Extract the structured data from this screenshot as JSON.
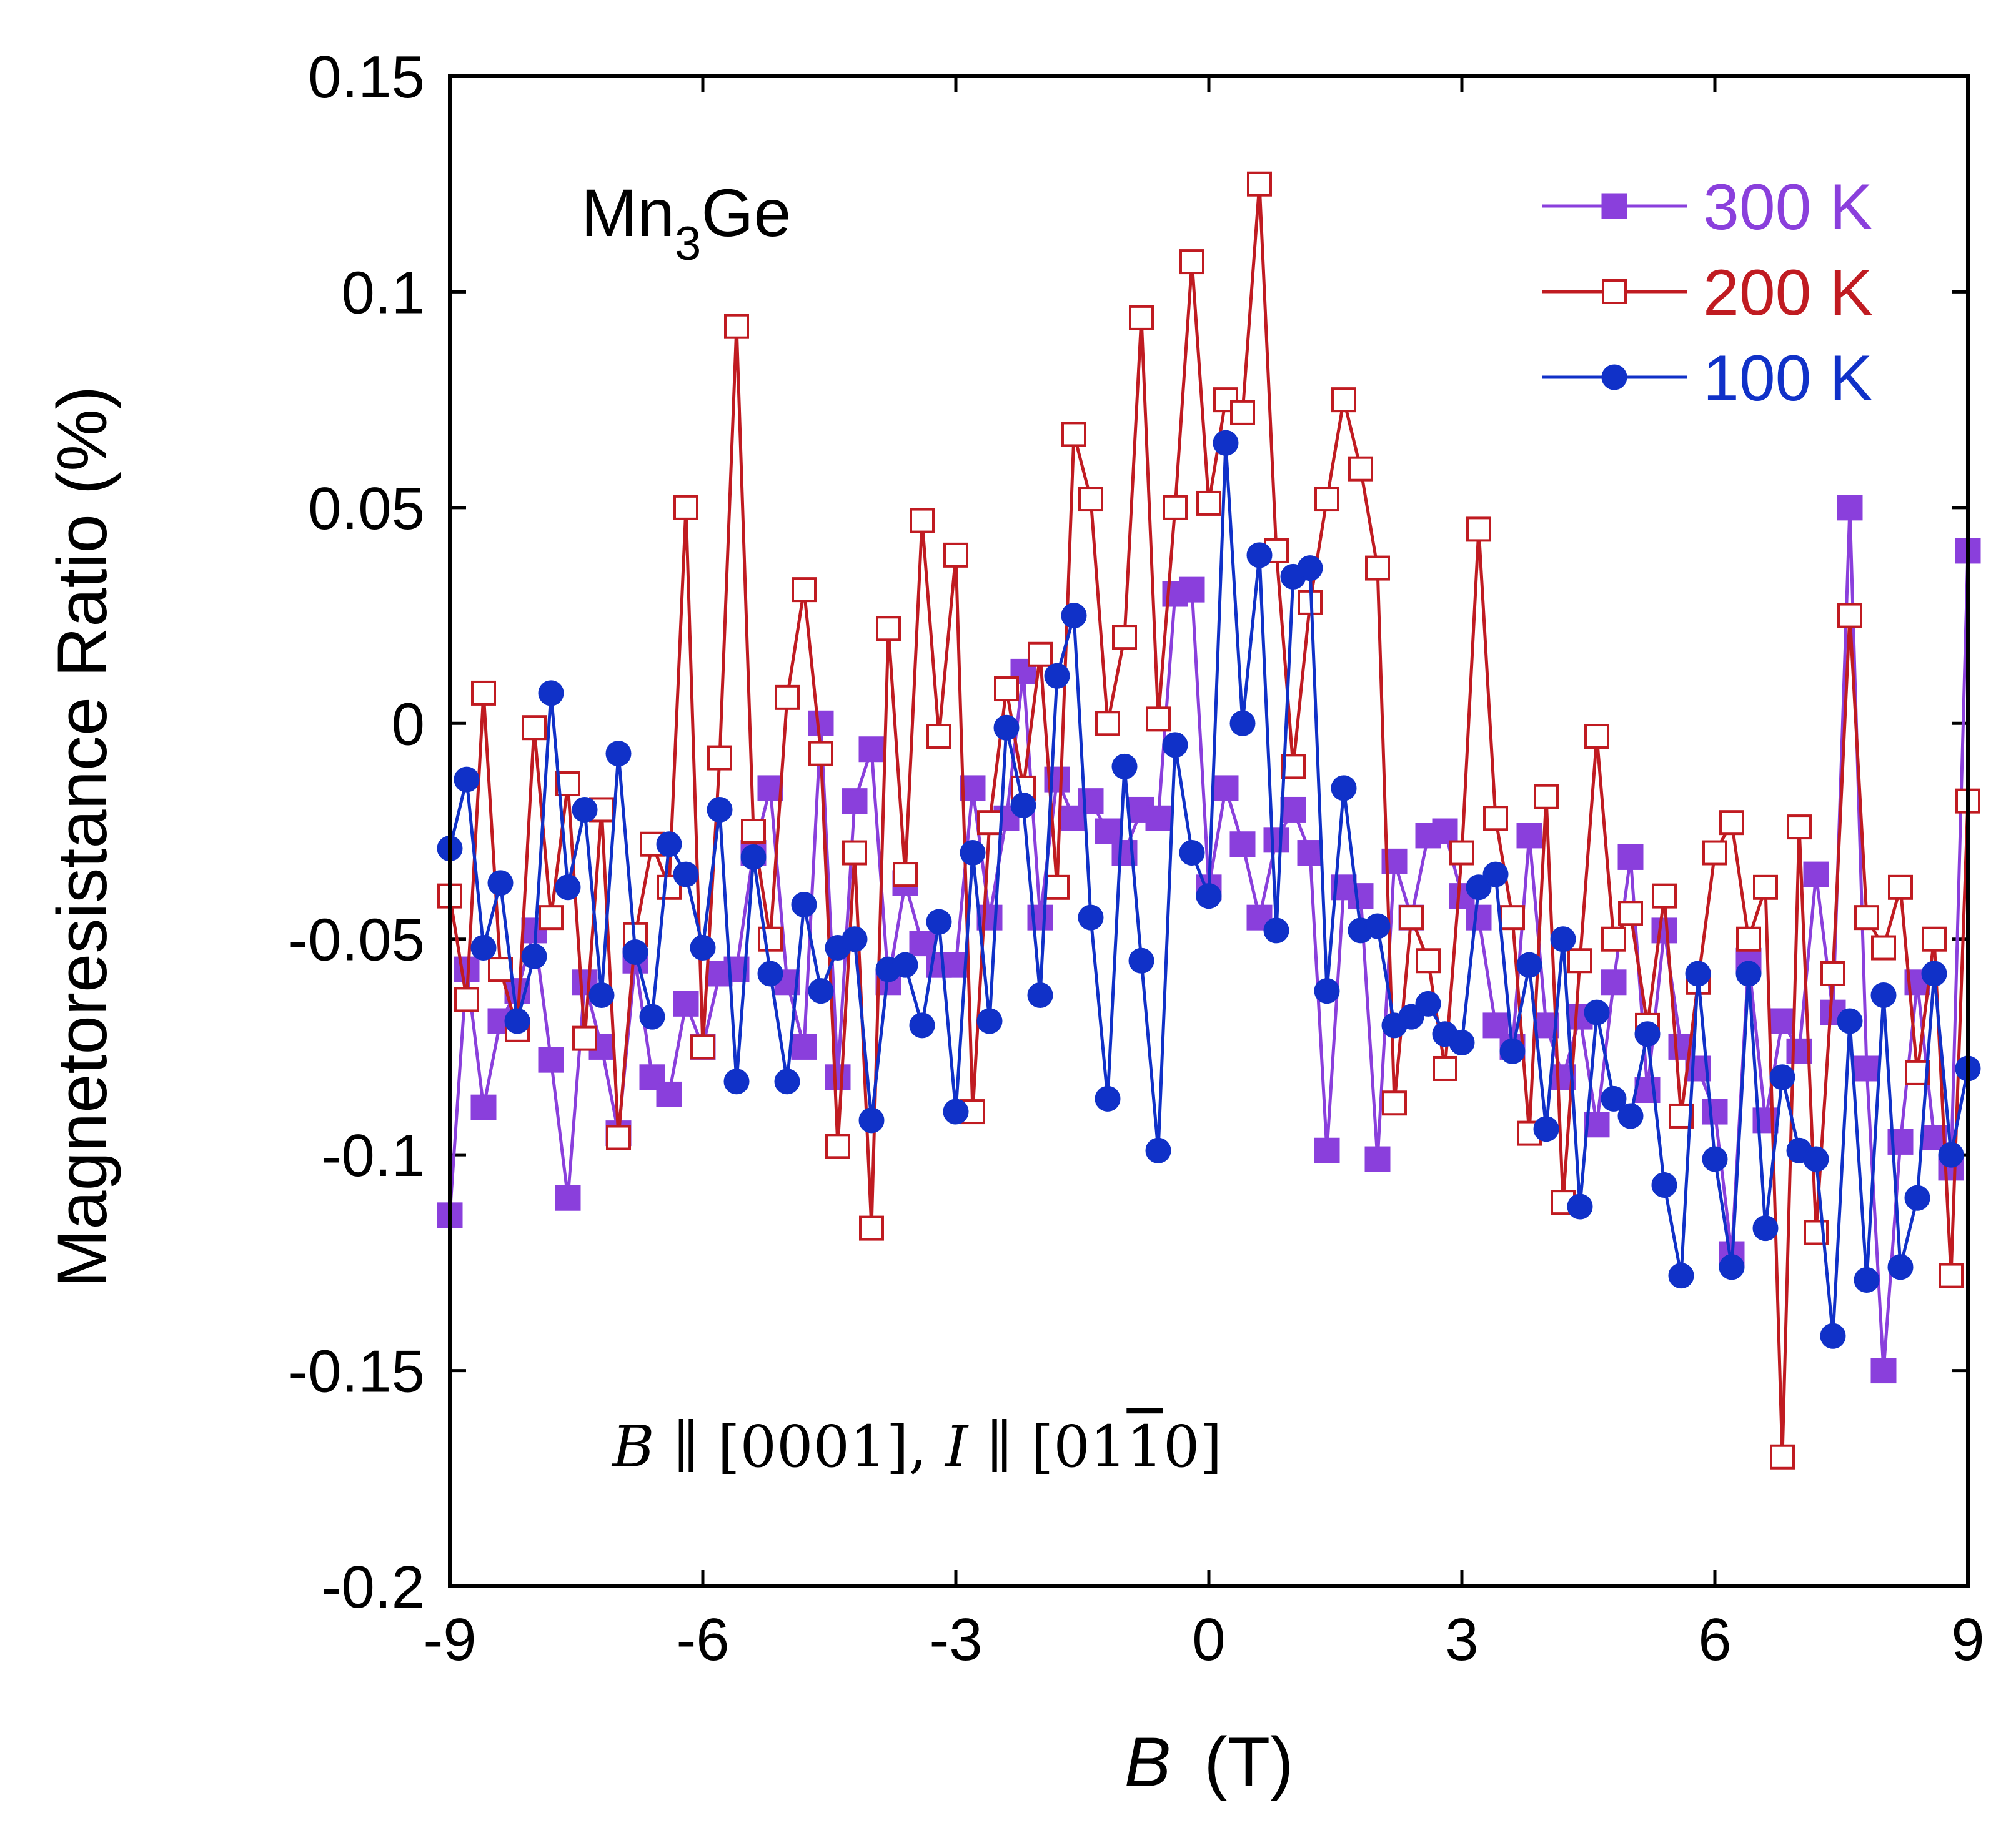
{
  "chart_data": {
    "type": "scatter",
    "title": "",
    "xlabel_italic": "B",
    "xlabel_unit": "(T)",
    "ylabel": "Magnetoresistance Ratio (%)",
    "xlim": [
      -9,
      9
    ],
    "ylim": [
      -0.2,
      0.15
    ],
    "xticks": [
      -9,
      -6,
      -3,
      0,
      3,
      6,
      9
    ],
    "xtick_labels": [
      "-9",
      "-6",
      "-3",
      "0",
      "3",
      "6",
      "9"
    ],
    "yticks": [
      0.15,
      0.1,
      0.05,
      0,
      -0.05,
      -0.1,
      -0.15,
      -0.2
    ],
    "ytick_labels": [
      "0.15",
      "0.1",
      "0.05",
      "0",
      "-0.05",
      "-0.1",
      "-0.15",
      "-0.2"
    ],
    "annotations": {
      "sample_main": "Mn",
      "sample_sub": "3",
      "sample_tail": "Ge",
      "condition_b": "B",
      "condition_mid": " ∥ [0001], ",
      "condition_i": "I",
      "condition_pre": " ∥ [01",
      "condition_bar": "1",
      "condition_post": "0]"
    },
    "legend_position": "top-right",
    "series": [
      {
        "name": "300 K",
        "color": "#8a3fdc",
        "marker": "square-filled",
        "x": [
          -9.0,
          -8.8,
          -8.6,
          -8.4,
          -8.2,
          -8.0,
          -7.8,
          -7.6,
          -7.4,
          -7.2,
          -7.0,
          -6.8,
          -6.6,
          -6.4,
          -6.2,
          -6.0,
          -5.8,
          -5.6,
          -5.4,
          -5.2,
          -5.0,
          -4.8,
          -4.6,
          -4.4,
          -4.2,
          -4.0,
          -3.8,
          -3.6,
          -3.4,
          -3.2,
          -3.0,
          -2.8,
          -2.6,
          -2.4,
          -2.2,
          -2.0,
          -1.8,
          -1.6,
          -1.4,
          -1.2,
          -1.0,
          -0.8,
          -0.6,
          -0.4,
          -0.2,
          0.0,
          0.2,
          0.4,
          0.6,
          0.8,
          1.0,
          1.2,
          1.4,
          1.6,
          1.8,
          2.0,
          2.2,
          2.4,
          2.6,
          2.8,
          3.0,
          3.2,
          3.4,
          3.6,
          3.8,
          4.0,
          4.2,
          4.4,
          4.6,
          4.8,
          5.0,
          5.2,
          5.4,
          5.6,
          5.8,
          6.0,
          6.2,
          6.4,
          6.6,
          6.8,
          7.0,
          7.2,
          7.4,
          7.6,
          7.8,
          8.0,
          8.2,
          8.4,
          8.6,
          8.8,
          9.0
        ],
        "y": [
          -0.114,
          -0.057,
          -0.089,
          -0.069,
          -0.062,
          -0.048,
          -0.078,
          -0.11,
          -0.06,
          -0.075,
          -0.095,
          -0.055,
          -0.082,
          -0.086,
          -0.065,
          -0.075,
          -0.058,
          -0.057,
          -0.03,
          -0.015,
          -0.06,
          -0.075,
          0.0,
          -0.082,
          -0.018,
          -0.006,
          -0.06,
          -0.037,
          -0.051,
          -0.056,
          -0.056,
          -0.015,
          -0.045,
          -0.022,
          0.012,
          -0.045,
          -0.013,
          -0.022,
          -0.018,
          -0.025,
          -0.03,
          -0.02,
          -0.022,
          0.03,
          0.031,
          -0.038,
          -0.015,
          -0.028,
          -0.045,
          -0.027,
          -0.02,
          -0.03,
          -0.099,
          -0.038,
          -0.04,
          -0.101,
          -0.032,
          -0.045,
          -0.026,
          -0.025,
          -0.04,
          -0.045,
          -0.07,
          -0.075,
          -0.026,
          -0.07,
          -0.082,
          -0.068,
          -0.093,
          -0.06,
          -0.031,
          -0.085,
          -0.048,
          -0.075,
          -0.08,
          -0.09,
          -0.123,
          -0.055,
          -0.092,
          -0.069,
          -0.076,
          -0.035,
          -0.067,
          0.05,
          -0.08,
          -0.15,
          -0.097,
          -0.06,
          -0.096,
          -0.103,
          0.04
        ]
      },
      {
        "name": "200 K",
        "color": "#c01b21",
        "marker": "square-open",
        "x": [
          -9.0,
          -8.8,
          -8.6,
          -8.4,
          -8.2,
          -8.0,
          -7.8,
          -7.6,
          -7.4,
          -7.2,
          -7.0,
          -6.8,
          -6.6,
          -6.4,
          -6.2,
          -6.0,
          -5.8,
          -5.6,
          -5.4,
          -5.2,
          -5.0,
          -4.8,
          -4.6,
          -4.4,
          -4.2,
          -4.0,
          -3.8,
          -3.6,
          -3.4,
          -3.2,
          -3.0,
          -2.8,
          -2.6,
          -2.4,
          -2.2,
          -2.0,
          -1.8,
          -1.6,
          -1.4,
          -1.2,
          -1.0,
          -0.8,
          -0.6,
          -0.4,
          -0.2,
          0.0,
          0.2,
          0.4,
          0.6,
          0.8,
          1.0,
          1.2,
          1.4,
          1.6,
          1.8,
          2.0,
          2.2,
          2.4,
          2.6,
          2.8,
          3.0,
          3.2,
          3.4,
          3.6,
          3.8,
          4.0,
          4.2,
          4.4,
          4.6,
          4.8,
          5.0,
          5.2,
          5.4,
          5.6,
          5.8,
          6.0,
          6.2,
          6.4,
          6.6,
          6.8,
          7.0,
          7.2,
          7.4,
          7.6,
          7.8,
          8.0,
          8.2,
          8.4,
          8.6,
          8.8,
          9.0
        ],
        "y": [
          -0.04,
          -0.064,
          0.007,
          -0.057,
          -0.071,
          -0.001,
          -0.045,
          -0.014,
          -0.073,
          -0.02,
          -0.096,
          -0.049,
          -0.028,
          -0.038,
          0.05,
          -0.075,
          -0.008,
          0.092,
          -0.025,
          -0.05,
          0.006,
          0.031,
          -0.007,
          -0.098,
          -0.03,
          -0.117,
          0.022,
          -0.035,
          0.047,
          -0.003,
          0.039,
          -0.09,
          -0.023,
          0.008,
          -0.015,
          0.016,
          -0.038,
          0.067,
          0.052,
          0.0,
          0.02,
          0.094,
          0.001,
          0.05,
          0.107,
          0.051,
          0.075,
          0.072,
          0.125,
          0.04,
          -0.01,
          0.028,
          0.052,
          0.075,
          0.059,
          0.036,
          -0.088,
          -0.045,
          -0.055,
          -0.08,
          -0.03,
          0.045,
          -0.022,
          -0.045,
          -0.095,
          -0.017,
          -0.111,
          -0.055,
          -0.003,
          -0.05,
          -0.044,
          -0.07,
          -0.04,
          -0.091,
          -0.06,
          -0.03,
          -0.023,
          -0.05,
          -0.038,
          -0.17,
          -0.024,
          -0.118,
          -0.058,
          0.025,
          -0.045,
          -0.052,
          -0.038,
          -0.081,
          -0.05,
          -0.128,
          -0.018
        ]
      },
      {
        "name": "100 K",
        "color": "#1031c8",
        "marker": "circle-filled",
        "x": [
          -9.0,
          -8.8,
          -8.6,
          -8.4,
          -8.2,
          -8.0,
          -7.8,
          -7.6,
          -7.4,
          -7.2,
          -7.0,
          -6.8,
          -6.6,
          -6.4,
          -6.2,
          -6.0,
          -5.8,
          -5.6,
          -5.4,
          -5.2,
          -5.0,
          -4.8,
          -4.6,
          -4.4,
          -4.2,
          -4.0,
          -3.8,
          -3.6,
          -3.4,
          -3.2,
          -3.0,
          -2.8,
          -2.6,
          -2.4,
          -2.2,
          -2.0,
          -1.8,
          -1.6,
          -1.4,
          -1.2,
          -1.0,
          -0.8,
          -0.6,
          -0.4,
          -0.2,
          0.0,
          0.2,
          0.4,
          0.6,
          0.8,
          1.0,
          1.2,
          1.4,
          1.6,
          1.8,
          2.0,
          2.2,
          2.4,
          2.6,
          2.8,
          3.0,
          3.2,
          3.4,
          3.6,
          3.8,
          4.0,
          4.2,
          4.4,
          4.6,
          4.8,
          5.0,
          5.2,
          5.4,
          5.6,
          5.8,
          6.0,
          6.2,
          6.4,
          6.6,
          6.8,
          7.0,
          7.2,
          7.4,
          7.6,
          7.8,
          8.0,
          8.2,
          8.4,
          8.6,
          8.8,
          9.0
        ],
        "y": [
          -0.029,
          -0.013,
          -0.052,
          -0.037,
          -0.069,
          -0.054,
          0.007,
          -0.038,
          -0.02,
          -0.063,
          -0.007,
          -0.053,
          -0.068,
          -0.028,
          -0.035,
          -0.052,
          -0.02,
          -0.083,
          -0.031,
          -0.058,
          -0.083,
          -0.042,
          -0.062,
          -0.052,
          -0.05,
          -0.092,
          -0.057,
          -0.056,
          -0.07,
          -0.046,
          -0.09,
          -0.03,
          -0.069,
          -0.001,
          -0.019,
          -0.063,
          0.011,
          0.025,
          -0.045,
          -0.087,
          -0.01,
          -0.055,
          -0.099,
          -0.005,
          -0.03,
          -0.04,
          0.065,
          0.0,
          0.039,
          -0.048,
          0.034,
          0.036,
          -0.062,
          -0.015,
          -0.048,
          -0.047,
          -0.07,
          -0.068,
          -0.065,
          -0.072,
          -0.074,
          -0.038,
          -0.035,
          -0.076,
          -0.056,
          -0.094,
          -0.05,
          -0.112,
          -0.067,
          -0.087,
          -0.091,
          -0.072,
          -0.107,
          -0.128,
          -0.058,
          -0.101,
          -0.126,
          -0.058,
          -0.117,
          -0.082,
          -0.099,
          -0.101,
          -0.142,
          -0.069,
          -0.129,
          -0.063,
          -0.126,
          -0.11,
          -0.058,
          -0.1,
          -0.08
        ]
      }
    ]
  }
}
